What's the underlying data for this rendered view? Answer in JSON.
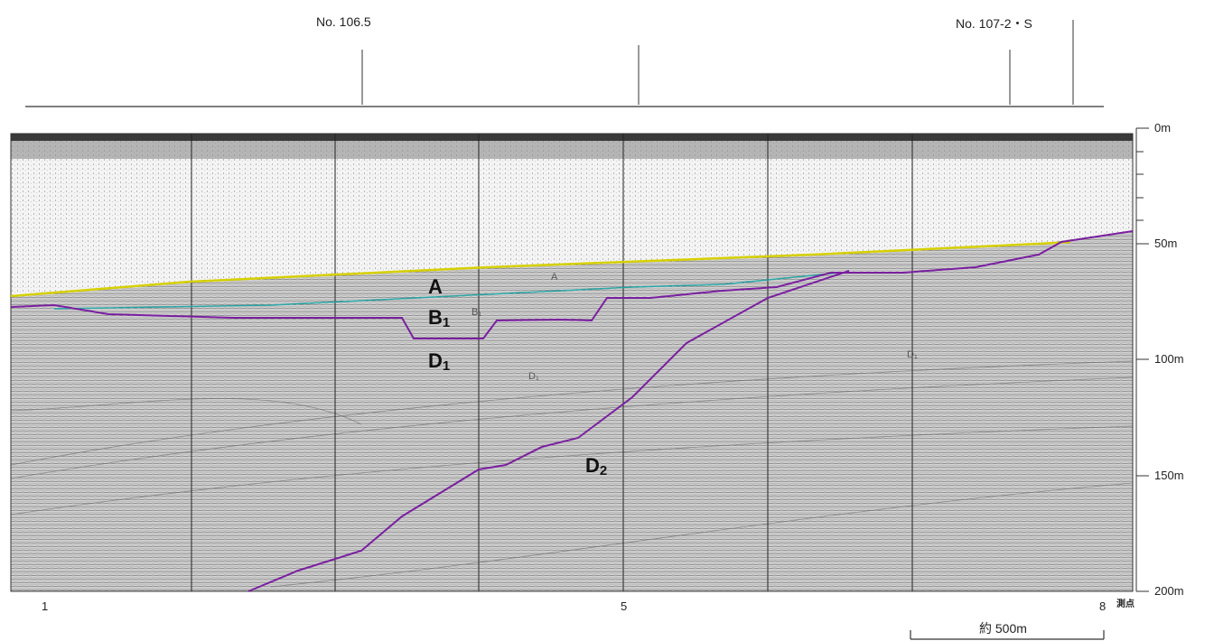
{
  "figure": {
    "stations": [
      "No. 106.5",
      "No. 107-2・S"
    ],
    "depth_axis": {
      "unit": "m",
      "ticks": [
        "0m",
        "50m",
        "100m",
        "150m",
        "200m"
      ]
    },
    "fix_points": {
      "labels": [
        "1",
        "5",
        "8"
      ],
      "unit": "測点"
    },
    "scale_bar": "約 500m",
    "units": {
      "A": {
        "letter": "A",
        "sub": ""
      },
      "B1": {
        "letter": "B",
        "sub": "1"
      },
      "D1": {
        "letter": "D",
        "sub": "1"
      },
      "D2": {
        "letter": "D",
        "sub": "2"
      }
    },
    "faint_labels": {
      "A": "A",
      "B1": "B₁",
      "D1a": "D₁",
      "D1b": "D₁"
    },
    "boundary_colors": {
      "seafloor": "#d6d000",
      "A_base": "#2aa5a5",
      "B1_base": "#7a1fa0",
      "D2_top": "#7a1fa0"
    }
  }
}
